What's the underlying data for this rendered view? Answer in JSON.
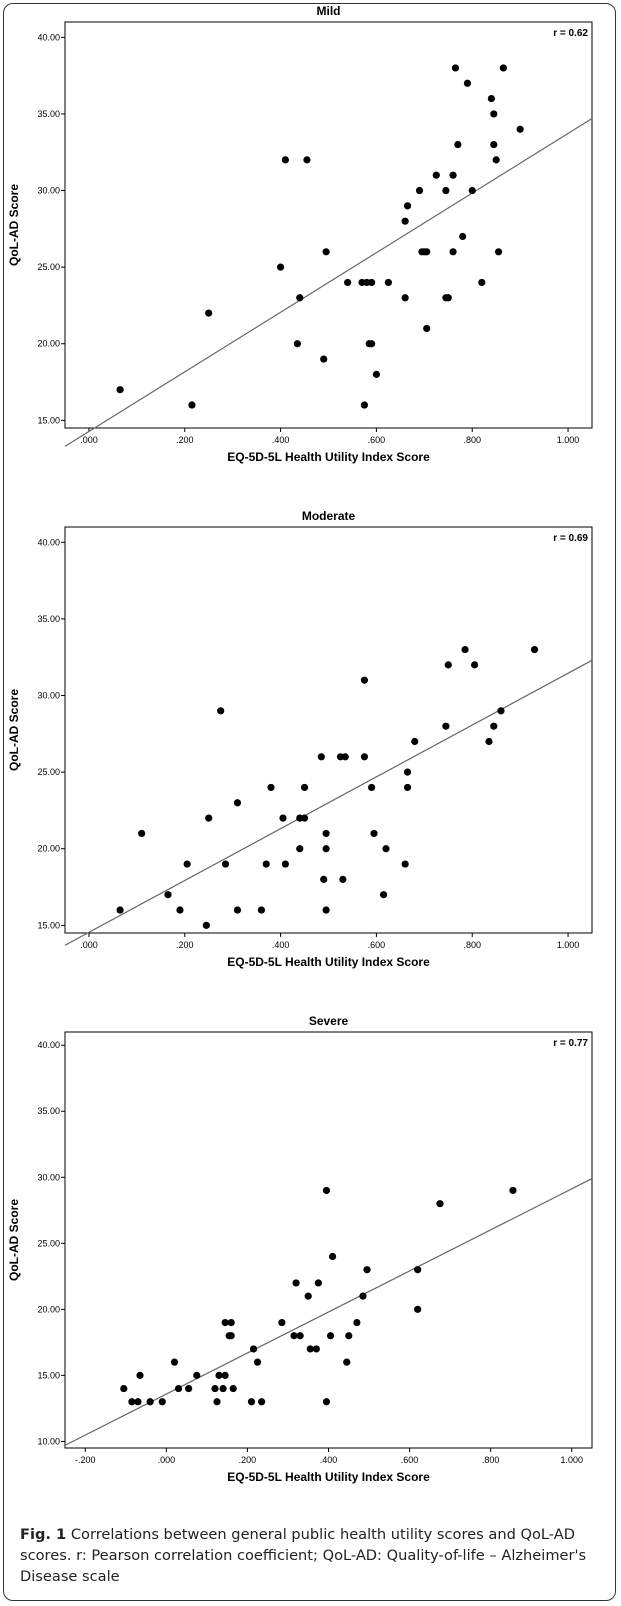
{
  "caption": {
    "label": "Fig. 1",
    "text": "Correlations between general public health utility scores and QoL-AD scores. r: Pearson correlation coefficient; QoL-AD: Quality-of-life – Alzheimer's Disease scale"
  },
  "colors": {
    "point": "#000000",
    "fit_line": "#666666",
    "axis": "#000000",
    "text": "#000000"
  },
  "chart_data": [
    {
      "type": "scatter",
      "title": "Mild",
      "xlabel": "EQ-5D-5L Health Utility Index Score",
      "ylabel": "QoL-AD Score",
      "annotation": "r = 0.62",
      "xlim": [
        -0.05,
        1.05
      ],
      "ylim": [
        14.5,
        41
      ],
      "xticks": [
        0,
        0.2,
        0.4,
        0.6,
        0.8,
        1.0
      ],
      "xtick_labels": [
        ".000",
        ".200",
        ".400",
        ".600",
        ".800",
        "1.000"
      ],
      "yticks": [
        15,
        20,
        25,
        30,
        35,
        40
      ],
      "ytick_labels": [
        "15.00",
        "20.00",
        "25.00",
        "30.00",
        "35.00",
        "40.00"
      ],
      "fit_line": [
        [
          -0.05,
          13.3
        ],
        [
          1.05,
          34.7
        ]
      ],
      "points": [
        [
          0.065,
          17
        ],
        [
          0.215,
          16
        ],
        [
          0.25,
          22
        ],
        [
          0.4,
          25
        ],
        [
          0.41,
          32
        ],
        [
          0.435,
          20
        ],
        [
          0.44,
          23
        ],
        [
          0.455,
          32
        ],
        [
          0.49,
          19
        ],
        [
          0.495,
          26
        ],
        [
          0.54,
          24
        ],
        [
          0.57,
          24
        ],
        [
          0.575,
          16
        ],
        [
          0.58,
          24
        ],
        [
          0.585,
          20
        ],
        [
          0.59,
          20
        ],
        [
          0.59,
          24
        ],
        [
          0.6,
          18
        ],
        [
          0.625,
          24
        ],
        [
          0.66,
          23
        ],
        [
          0.66,
          28
        ],
        [
          0.665,
          29
        ],
        [
          0.69,
          30
        ],
        [
          0.695,
          26
        ],
        [
          0.7,
          26
        ],
        [
          0.705,
          26
        ],
        [
          0.705,
          21
        ],
        [
          0.725,
          31
        ],
        [
          0.745,
          30
        ],
        [
          0.745,
          23
        ],
        [
          0.75,
          23
        ],
        [
          0.76,
          31
        ],
        [
          0.76,
          26
        ],
        [
          0.765,
          38
        ],
        [
          0.77,
          33
        ],
        [
          0.78,
          27
        ],
        [
          0.79,
          37
        ],
        [
          0.8,
          30
        ],
        [
          0.82,
          24
        ],
        [
          0.84,
          36
        ],
        [
          0.845,
          35
        ],
        [
          0.845,
          33
        ],
        [
          0.85,
          32
        ],
        [
          0.855,
          26
        ],
        [
          0.865,
          38
        ],
        [
          0.9,
          34
        ]
      ]
    },
    {
      "type": "scatter",
      "title": "Moderate",
      "xlabel": "EQ-5D-5L Health Utility Index Score",
      "ylabel": "QoL-AD Score",
      "annotation": "r = 0.69",
      "xlim": [
        -0.05,
        1.05
      ],
      "ylim": [
        14.5,
        41
      ],
      "xticks": [
        0,
        0.2,
        0.4,
        0.6,
        0.8,
        1.0
      ],
      "xtick_labels": [
        ".000",
        ".200",
        ".400",
        ".600",
        ".800",
        "1.000"
      ],
      "yticks": [
        15,
        20,
        25,
        30,
        35,
        40
      ],
      "ytick_labels": [
        "15.00",
        "20.00",
        "25.00",
        "30.00",
        "35.00",
        "40.00"
      ],
      "fit_line": [
        [
          -0.05,
          13.7
        ],
        [
          1.05,
          32.3
        ]
      ],
      "points": [
        [
          0.065,
          16
        ],
        [
          0.11,
          21
        ],
        [
          0.165,
          17
        ],
        [
          0.19,
          16
        ],
        [
          0.205,
          19
        ],
        [
          0.245,
          15
        ],
        [
          0.25,
          22
        ],
        [
          0.275,
          29
        ],
        [
          0.285,
          19
        ],
        [
          0.31,
          23
        ],
        [
          0.31,
          16
        ],
        [
          0.36,
          16
        ],
        [
          0.37,
          19
        ],
        [
          0.38,
          24
        ],
        [
          0.405,
          22
        ],
        [
          0.41,
          19
        ],
        [
          0.44,
          20
        ],
        [
          0.44,
          22
        ],
        [
          0.45,
          24
        ],
        [
          0.45,
          22
        ],
        [
          0.485,
          26
        ],
        [
          0.49,
          18
        ],
        [
          0.495,
          21
        ],
        [
          0.495,
          20
        ],
        [
          0.495,
          16
        ],
        [
          0.525,
          26
        ],
        [
          0.53,
          18
        ],
        [
          0.535,
          26
        ],
        [
          0.575,
          26
        ],
        [
          0.575,
          31
        ],
        [
          0.59,
          24
        ],
        [
          0.595,
          21
        ],
        [
          0.615,
          17
        ],
        [
          0.62,
          20
        ],
        [
          0.66,
          19
        ],
        [
          0.665,
          25
        ],
        [
          0.665,
          24
        ],
        [
          0.68,
          27
        ],
        [
          0.745,
          28
        ],
        [
          0.75,
          32
        ],
        [
          0.785,
          33
        ],
        [
          0.805,
          32
        ],
        [
          0.835,
          27
        ],
        [
          0.845,
          28
        ],
        [
          0.86,
          29
        ],
        [
          0.93,
          33
        ]
      ]
    },
    {
      "type": "scatter",
      "title": "Severe",
      "xlabel": "EQ-5D-5L Health Utility Index Score",
      "ylabel": "QoL-AD Score",
      "annotation": "r = 0.77",
      "xlim": [
        -0.25,
        1.05
      ],
      "ylim": [
        9.5,
        41
      ],
      "xticks": [
        -0.2,
        0,
        0.2,
        0.4,
        0.6,
        0.8,
        1.0
      ],
      "xtick_labels": [
        "-.200",
        ".000",
        ".200",
        ".400",
        ".600",
        ".800",
        "1.000"
      ],
      "yticks": [
        10,
        15,
        20,
        25,
        30,
        35,
        40
      ],
      "ytick_labels": [
        "10.00",
        "15.00",
        "20.00",
        "25.00",
        "30.00",
        "35.00",
        "40.00"
      ],
      "fit_line": [
        [
          -0.25,
          9.7
        ],
        [
          1.05,
          29.9
        ]
      ],
      "points": [
        [
          -0.105,
          14
        ],
        [
          -0.085,
          13
        ],
        [
          -0.07,
          13
        ],
        [
          -0.065,
          15
        ],
        [
          -0.04,
          13
        ],
        [
          -0.01,
          13
        ],
        [
          0.02,
          16
        ],
        [
          0.03,
          14
        ],
        [
          0.055,
          14
        ],
        [
          0.075,
          15
        ],
        [
          0.12,
          14
        ],
        [
          0.125,
          13
        ],
        [
          0.13,
          15
        ],
        [
          0.14,
          14
        ],
        [
          0.145,
          15
        ],
        [
          0.145,
          19
        ],
        [
          0.155,
          18
        ],
        [
          0.16,
          19
        ],
        [
          0.16,
          18
        ],
        [
          0.165,
          14
        ],
        [
          0.21,
          13
        ],
        [
          0.215,
          17
        ],
        [
          0.225,
          16
        ],
        [
          0.235,
          13
        ],
        [
          0.285,
          19
        ],
        [
          0.315,
          18
        ],
        [
          0.32,
          22
        ],
        [
          0.33,
          18
        ],
        [
          0.35,
          21
        ],
        [
          0.355,
          17
        ],
        [
          0.37,
          17
        ],
        [
          0.375,
          22
        ],
        [
          0.395,
          29
        ],
        [
          0.395,
          13
        ],
        [
          0.405,
          18
        ],
        [
          0.41,
          24
        ],
        [
          0.445,
          16
        ],
        [
          0.45,
          18
        ],
        [
          0.47,
          19
        ],
        [
          0.485,
          21
        ],
        [
          0.495,
          23
        ],
        [
          0.62,
          23
        ],
        [
          0.62,
          20
        ],
        [
          0.675,
          28
        ],
        [
          0.855,
          29
        ]
      ]
    }
  ]
}
